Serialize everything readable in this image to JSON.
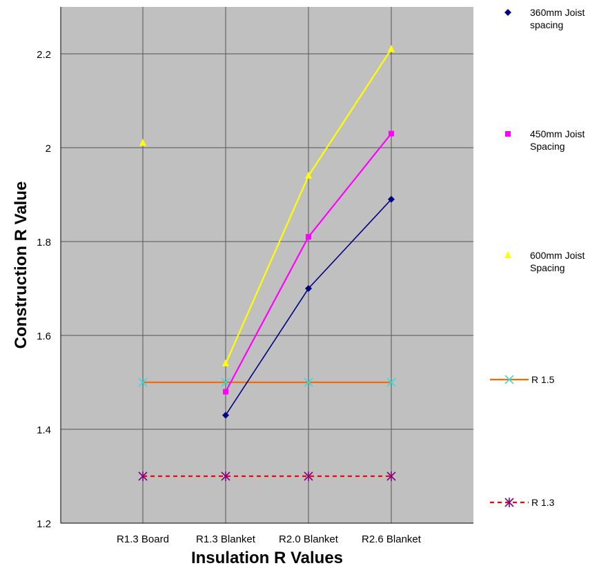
{
  "chart_data": {
    "type": "line",
    "xlabel": "Insulation R Values",
    "ylabel": "Construction R Value",
    "categories": [
      "R1.3 Board",
      "R1.3 Blanket",
      "R2.0 Blanket",
      "R2.6 Blanket"
    ],
    "ylim": [
      1.2,
      2.2
    ],
    "ytick_labels": [
      "1.2",
      "1.4",
      "1.6",
      "1.8",
      "2",
      "2.2"
    ],
    "grid": true,
    "plot_background": "#c0c0c0",
    "legend_position": "right",
    "series": [
      {
        "name_lines": [
          "360mm Joist",
          "spacing"
        ],
        "values": [
          null,
          1.43,
          1.7,
          1.89
        ],
        "color": "#000080",
        "marker": "diamond",
        "line": "solid"
      },
      {
        "name_lines": [
          "450mm Joist",
          "Spacing"
        ],
        "values": [
          null,
          1.48,
          1.81,
          2.03
        ],
        "color": "#ff00ff",
        "marker": "square",
        "line": "solid"
      },
      {
        "name_lines": [
          "600mm Joist",
          "Spacing"
        ],
        "values": [
          2.01,
          1.54,
          1.94,
          2.21
        ],
        "color": "#ffff00",
        "marker": "triangle",
        "line": "solid",
        "connect_from": 1
      },
      {
        "name_lines": [
          "R 1.5"
        ],
        "values": [
          1.5,
          1.5,
          1.5,
          1.5
        ],
        "color": "#ff6600",
        "marker_color": "#33dddd",
        "marker": "x",
        "line": "solid"
      },
      {
        "name_lines": [
          "R 1.3"
        ],
        "values": [
          1.3,
          1.3,
          1.3,
          1.3
        ],
        "color": "#ff0000",
        "marker_color": "#800080",
        "marker": "star",
        "line": "dashed"
      }
    ]
  }
}
